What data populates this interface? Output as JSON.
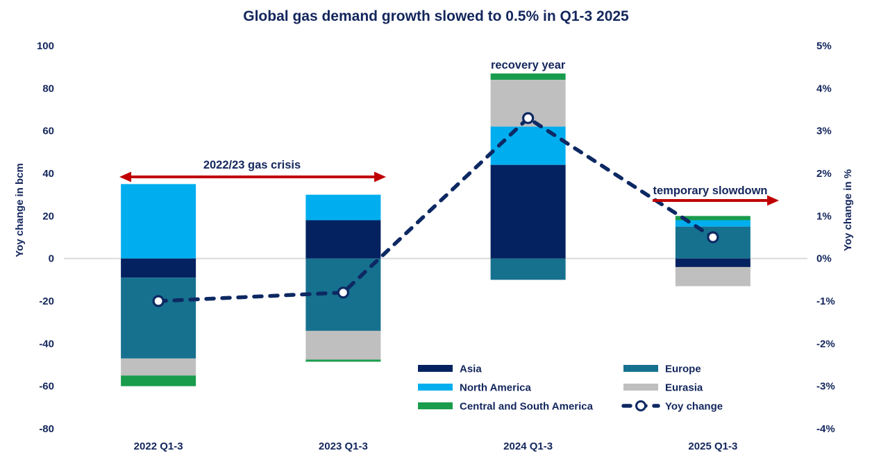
{
  "chart_data": {
    "type": "bar",
    "subtype": "stacked-bar-with-line-overlay",
    "title": "Global gas demand growth slowed to 0.5% in Q1-3 2025",
    "categories": [
      "2022 Q1-3",
      "2023 Q1-3",
      "2024 Q1-3",
      "2025 Q1-3"
    ],
    "left_axis": {
      "label": "Yoy change in bcm",
      "max": 100,
      "min": -80,
      "ticks": [
        "100",
        "80",
        "60",
        "40",
        "20",
        "0",
        "-20",
        "-40",
        "-60",
        "-80"
      ],
      "tick_values": [
        100,
        80,
        60,
        40,
        20,
        0,
        -20,
        -40,
        -60,
        -80
      ]
    },
    "right_axis": {
      "label": "Yoy change in %",
      "max": 5,
      "min": -4,
      "ticks": [
        "5%",
        "4%",
        "3%",
        "2%",
        "1%",
        "0%",
        "-1%",
        "-2%",
        "-3%",
        "-4%"
      ],
      "tick_values": [
        5,
        4,
        3,
        2,
        1,
        0,
        -1,
        -2,
        -3,
        -4
      ]
    },
    "series": [
      {
        "name": "Asia",
        "color": "#052260",
        "values": [
          -9,
          18,
          44,
          -4
        ]
      },
      {
        "name": "North America",
        "color": "#00AEEF",
        "values": [
          35,
          12,
          18,
          3
        ]
      },
      {
        "name": "Central and South America",
        "color": "#1A9C4D",
        "values": [
          -5,
          -1,
          3,
          2
        ]
      },
      {
        "name": "Europe",
        "color": "#16718F",
        "values": [
          -38,
          -34,
          -10,
          15
        ]
      },
      {
        "name": "Eurasia",
        "color": "#BFBFBF",
        "values": [
          -8,
          -13.5,
          22,
          -9
        ]
      }
    ],
    "stack_order": {
      "positive": [
        [
          "North America"
        ],
        [
          "North America",
          "Asia"
        ],
        [
          "Central and South America",
          "Eurasia",
          "North America",
          "Asia"
        ],
        [
          "Central and South America",
          "North America",
          "Europe"
        ]
      ],
      "negative": [
        [
          "Asia",
          "Europe",
          "Eurasia",
          "Central and South America"
        ],
        [
          "Europe",
          "Eurasia",
          "Central and South America"
        ],
        [
          "Europe"
        ],
        [
          "Asia",
          "Eurasia"
        ]
      ]
    },
    "line_series": {
      "name": "Yoy change",
      "color": "#0d2963",
      "style": "dashed",
      "marker": "open-circle",
      "values_percent": [
        -1.0,
        -0.8,
        3.3,
        0.5
      ]
    },
    "annotations": [
      {
        "id": "gas-crisis",
        "text": "2022/23 gas crisis",
        "arrow": "double"
      },
      {
        "id": "recovery",
        "text": "recovery year",
        "arrow": "none"
      },
      {
        "id": "slowdown",
        "text": "temporary slowdown",
        "arrow": "right"
      }
    ],
    "colors": {
      "text_navy": "#13265c",
      "annotation_arrow_red": "#c00000",
      "zero_line_gray": "#d9d9d9",
      "marker_fill": "#ffffff"
    },
    "grid": "zero-line-only",
    "legend_position": "bottom-center-inside"
  },
  "legend": {
    "columns": [
      {
        "items": [
          {
            "label": "Asia",
            "color": "#052260",
            "swatch": "fill"
          },
          {
            "label": "North America",
            "color": "#00AEEF",
            "swatch": "fill"
          },
          {
            "label": "Central and South America",
            "color": "#1A9C4D",
            "swatch": "fill"
          }
        ]
      },
      {
        "items": [
          {
            "label": "Europe",
            "color": "#16718F",
            "swatch": "fill"
          },
          {
            "label": "Eurasia",
            "color": "#BFBFBF",
            "swatch": "fill"
          },
          {
            "label": "Yoy change",
            "color": "#0d2963",
            "swatch": "dashed-line-marker"
          }
        ]
      }
    ]
  }
}
